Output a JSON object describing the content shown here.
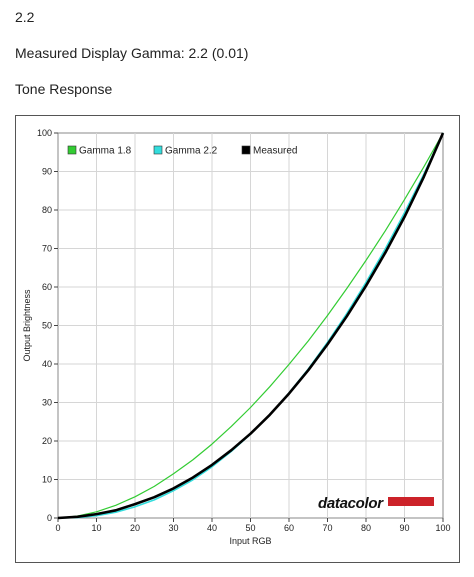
{
  "header": {
    "value": "2.2",
    "measured_label": "Measured Display Gamma: 2.2 (0.01)",
    "section_title": "Tone Response"
  },
  "logo": {
    "text": "datacolor",
    "bar_color": "#cc2229"
  },
  "chart_data": {
    "type": "line",
    "xlabel": "Input RGB",
    "ylabel": "Output Brightness",
    "xlim": [
      0,
      100
    ],
    "ylim": [
      0,
      100
    ],
    "x_ticks": [
      0,
      10,
      20,
      30,
      40,
      50,
      60,
      70,
      80,
      90,
      100
    ],
    "y_ticks": [
      0,
      10,
      20,
      30,
      40,
      50,
      60,
      70,
      80,
      90,
      100
    ],
    "grid": true,
    "legend_position": "top-left",
    "x": [
      0,
      5,
      10,
      15,
      20,
      25,
      30,
      35,
      40,
      45,
      50,
      55,
      60,
      65,
      70,
      75,
      80,
      85,
      90,
      95,
      100
    ],
    "series": [
      {
        "name": "Gamma 1.8",
        "color": "#33cc33",
        "values": [
          0,
          0.5,
          1.6,
          3.3,
          5.5,
          8.2,
          11.5,
          15.1,
          19.2,
          23.8,
          28.7,
          34.1,
          39.9,
          46.0,
          52.6,
          59.6,
          66.9,
          74.6,
          82.7,
          91.2,
          100
        ]
      },
      {
        "name": "Gamma 2.2",
        "color": "#33dddd",
        "values": [
          0,
          0.1,
          0.6,
          1.5,
          2.9,
          4.7,
          7.1,
          9.9,
          13.3,
          17.3,
          21.8,
          26.8,
          32.5,
          38.7,
          45.6,
          53.1,
          61.2,
          69.9,
          79.3,
          89.3,
          100
        ]
      },
      {
        "name": "Measured",
        "color": "#000000",
        "values": [
          0,
          0.3,
          1.0,
          2.0,
          3.6,
          5.4,
          7.7,
          10.5,
          13.8,
          17.6,
          21.9,
          26.8,
          32.3,
          38.4,
          45.1,
          52.4,
          60.3,
          68.9,
          78.2,
          88.6,
          100
        ]
      }
    ]
  }
}
